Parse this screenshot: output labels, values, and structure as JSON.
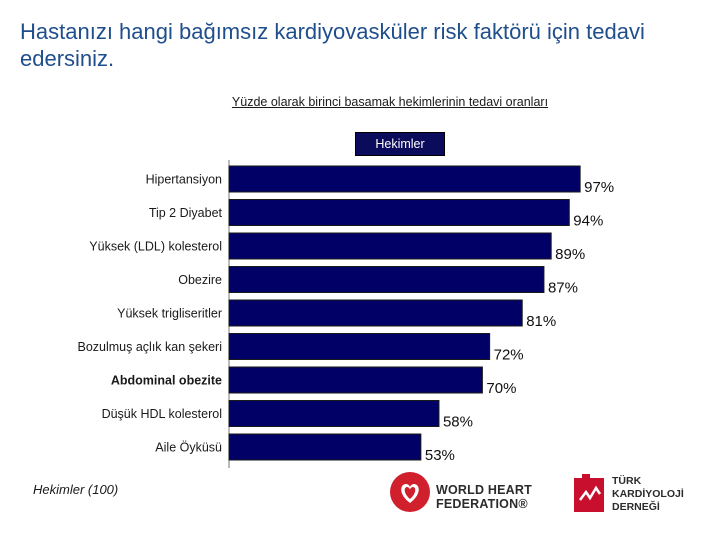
{
  "title": "Hastanızı hangi bağımsız kardiyovasküler risk faktörü için tedavi edersiniz.",
  "subtitle": "Yüzde olarak birinci basamak hekimlerinin tedavi oranları",
  "legend_label": "Hekimler",
  "footnote": "Hekimler (100)",
  "bar_color": "#000066",
  "logos": {
    "whf_line1": "WORLD HEART",
    "whf_line2": "FEDERATION®",
    "tkd_line1": "TÜRK",
    "tkd_line2": "KARDİYOLOJİ",
    "tkd_line3": "DERNEĞİ"
  },
  "chart_data": {
    "type": "bar",
    "orientation": "horizontal",
    "categories": [
      "Hipertansiyon",
      "Tip 2 Diyabet",
      "Yüksek (LDL) kolesterol",
      "Obezire",
      "Yüksek trigliseritler",
      "Bozulmuş açlık kan şekeri",
      "Abdominal obezite",
      "Düşük HDL kolesterol",
      "Aile Öyküsü"
    ],
    "bold_categories": [
      "Abdominal obezite"
    ],
    "series": [
      {
        "name": "Hekimler",
        "values": [
          97,
          94,
          89,
          87,
          81,
          72,
          70,
          58,
          53
        ]
      }
    ],
    "value_labels": [
      "97%",
      "94%",
      "89%",
      "87%",
      "81%",
      "72%",
      "70%",
      "58%",
      "53%"
    ],
    "xlim": [
      0,
      100
    ],
    "grid": false,
    "legend": "top-center"
  }
}
